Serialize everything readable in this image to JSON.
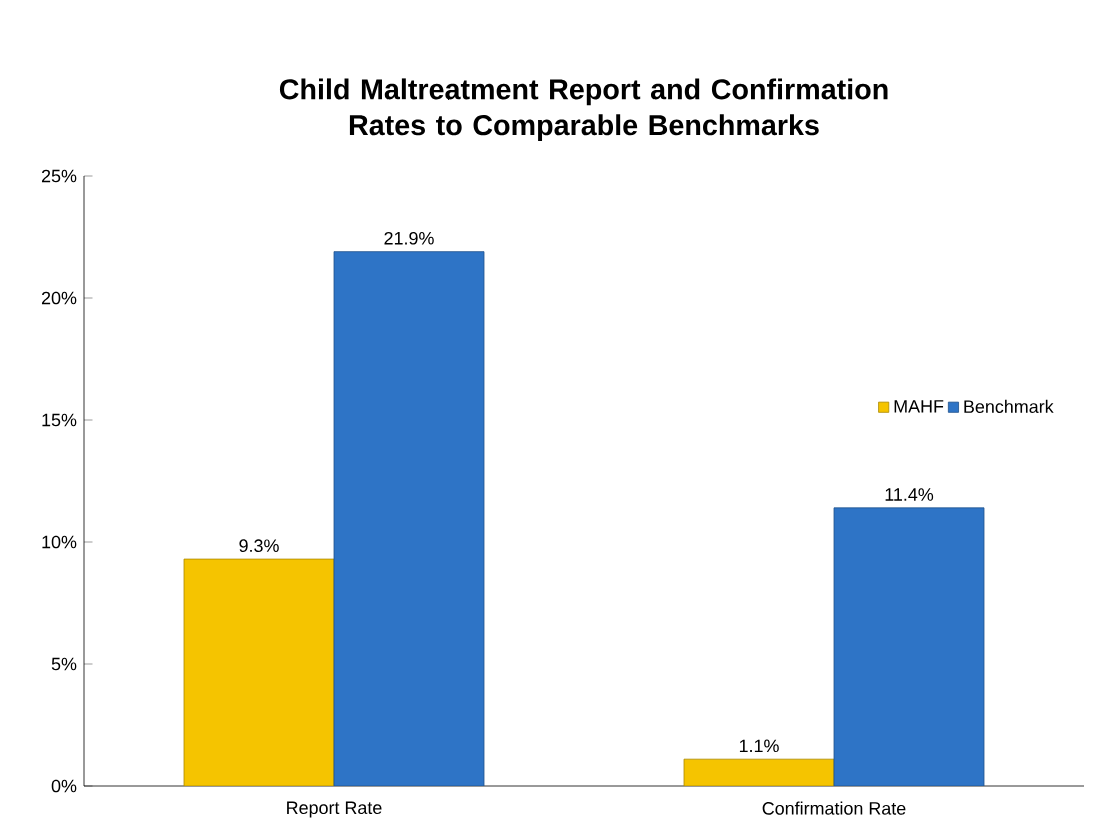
{
  "chart_data": {
    "type": "bar",
    "title": "Child Maltreatment Report and Confirmation Rates to Comparable Benchmarks",
    "categories": [
      "Report Rate",
      "Confirmation Rate"
    ],
    "series": [
      {
        "name": "MAHF",
        "color": "#f5c400",
        "values": [
          9.3,
          1.1
        ],
        "value_labels": [
          "9.3%",
          "1.1%"
        ]
      },
      {
        "name": "Benchmark",
        "color": "#2e74c6",
        "values": [
          21.9,
          11.4
        ],
        "value_labels": [
          "21.9%",
          "11.4%"
        ]
      }
    ],
    "ylim": [
      0,
      25
    ],
    "yticks": [
      {
        "value": 0,
        "label": "0%"
      },
      {
        "value": 5,
        "label": "5%"
      },
      {
        "value": 10,
        "label": "10%"
      },
      {
        "value": 15,
        "label": "15%"
      },
      {
        "value": 20,
        "label": "20%"
      },
      {
        "value": 25,
        "label": "25%"
      }
    ],
    "grid": false,
    "legend": "right"
  }
}
